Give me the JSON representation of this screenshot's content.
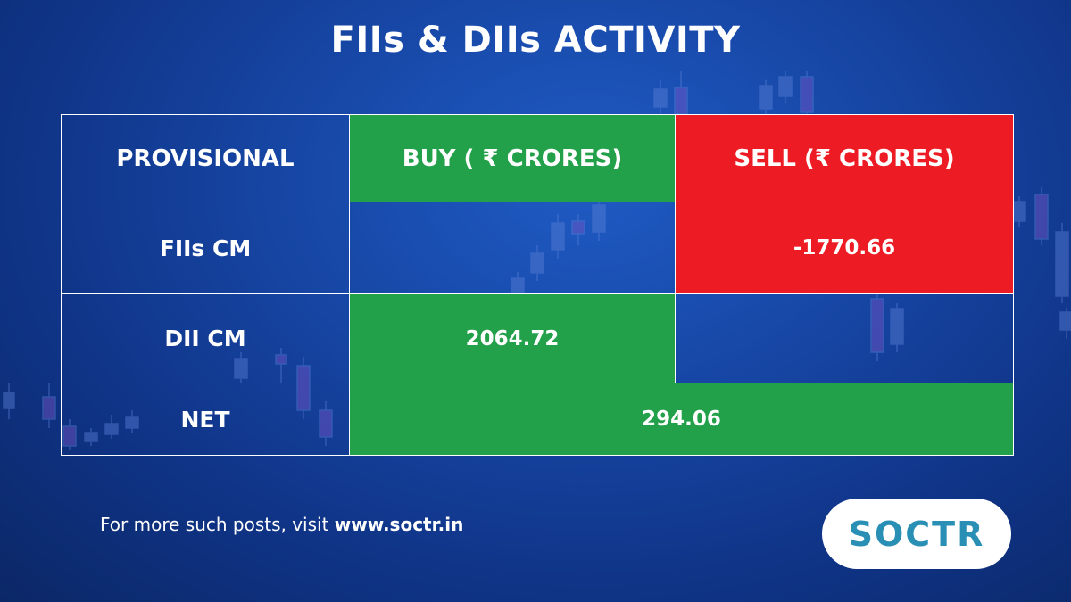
{
  "title": "FIIs & DIIs ACTIVITY",
  "table": {
    "headers": {
      "provisional": "PROVISIONAL",
      "buy": "BUY ( ₹ CRORES)",
      "sell": "SELL (₹ CRORES)"
    },
    "rows": [
      {
        "label": "FIIs CM",
        "buy": "",
        "sell": "-1770.66"
      },
      {
        "label": "DII CM",
        "buy": "2064.72",
        "sell": ""
      }
    ],
    "net": {
      "label": "NET",
      "value": "294.06"
    }
  },
  "footer": {
    "prefix": "For more such posts, visit ",
    "link": "www.soctr.in"
  },
  "logo": {
    "text": "SOCTR"
  },
  "colors": {
    "background": "#1747a6",
    "buy_green": "#22a14a",
    "sell_red": "#ed1c24",
    "logo_text": "#2a8fb5"
  }
}
